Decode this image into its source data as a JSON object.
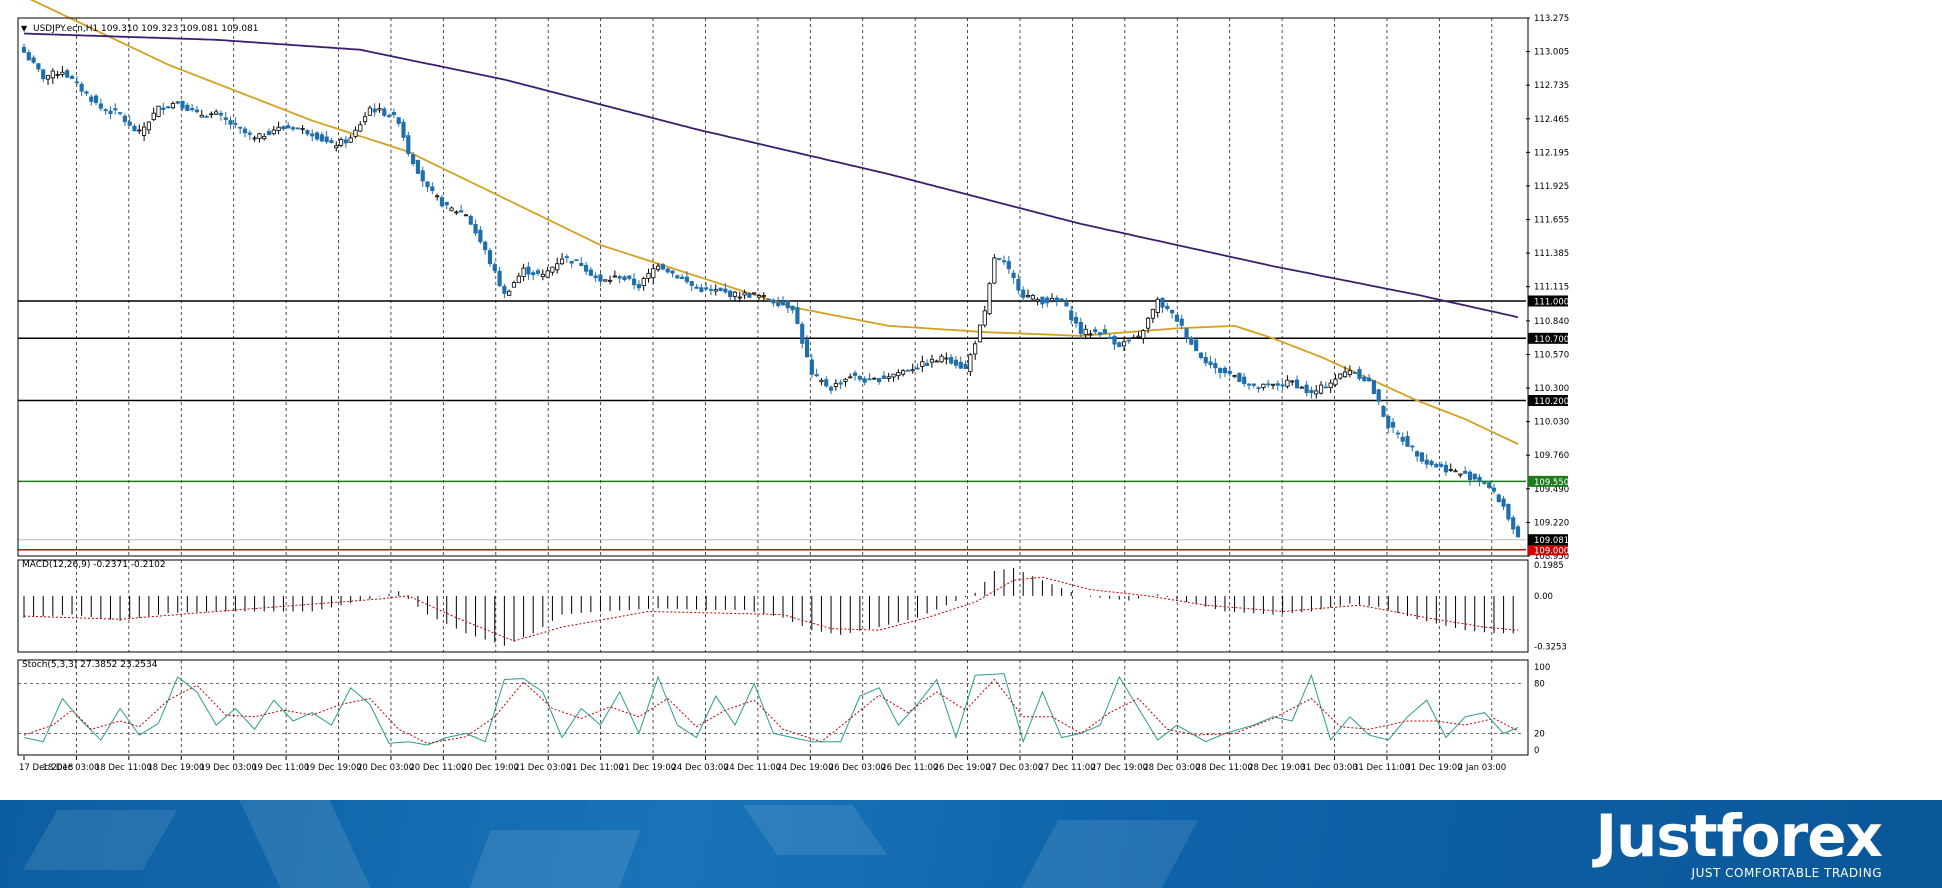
{
  "chart_data": {
    "type": "candlestick",
    "symbol_header": "USDJPY.ecn,H1  109.310 109.323 109.081 109.081",
    "price_axis": {
      "ticks": [
        "113.275",
        "113.005",
        "112.735",
        "112.465",
        "112.195",
        "111.925",
        "111.655",
        "111.385",
        "111.115",
        "110.840",
        "110.570",
        "110.300",
        "110.030",
        "109.760",
        "109.490",
        "109.220",
        "108.950"
      ],
      "range": [
        108.95,
        113.275
      ]
    },
    "horizontal_levels": [
      {
        "label": "111.000",
        "value": 111.0,
        "color": "#000000"
      },
      {
        "label": "110.700",
        "value": 110.7,
        "color": "#000000"
      },
      {
        "label": "110.200",
        "value": 110.2,
        "color": "#000000"
      },
      {
        "label": "109.550",
        "value": 109.55,
        "color": "#1e7a1e"
      },
      {
        "label": "109.000",
        "value": 109.0,
        "color": "#d00000"
      }
    ],
    "current_price": {
      "label": "109.081",
      "value": 109.081
    },
    "time_axis": [
      "17 Dec 2018",
      "18 Dec 03:00",
      "18 Dec 11:00",
      "18 Dec 19:00",
      "19 Dec 03:00",
      "19 Dec 11:00",
      "19 Dec 19:00",
      "20 Dec 03:00",
      "20 Dec 11:00",
      "20 Dec 19:00",
      "21 Dec 03:00",
      "21 Dec 11:00",
      "21 Dec 19:00",
      "24 Dec 03:00",
      "24 Dec 11:00",
      "24 Dec 19:00",
      "26 Dec 03:00",
      "26 Dec 11:00",
      "26 Dec 19:00",
      "27 Dec 03:00",
      "27 Dec 11:00",
      "27 Dec 19:00",
      "28 Dec 03:00",
      "28 Dec 11:00",
      "28 Dec 19:00",
      "31 Dec 03:00",
      "31 Dec 11:00",
      "31 Dec 19:00",
      "2 Jan 03:00"
    ],
    "close_anchors": [
      [
        0,
        113.0
      ],
      [
        4,
        112.8
      ],
      [
        8,
        112.85
      ],
      [
        12,
        112.7
      ],
      [
        16,
        112.55
      ],
      [
        20,
        112.5
      ],
      [
        22,
        112.4
      ],
      [
        24,
        112.35
      ],
      [
        28,
        112.55
      ],
      [
        32,
        112.6
      ],
      [
        36,
        112.5
      ],
      [
        40,
        112.5
      ],
      [
        44,
        112.4
      ],
      [
        48,
        112.3
      ],
      [
        52,
        112.38
      ],
      [
        56,
        112.4
      ],
      [
        60,
        112.35
      ],
      [
        64,
        112.25
      ],
      [
        68,
        112.3
      ],
      [
        72,
        112.55
      ],
      [
        76,
        112.5
      ],
      [
        78,
        112.45
      ],
      [
        80,
        112.2
      ],
      [
        84,
        111.9
      ],
      [
        88,
        111.75
      ],
      [
        92,
        111.7
      ],
      [
        96,
        111.4
      ],
      [
        100,
        111.05
      ],
      [
        104,
        111.25
      ],
      [
        108,
        111.2
      ],
      [
        112,
        111.35
      ],
      [
        116,
        111.3
      ],
      [
        120,
        111.15
      ],
      [
        124,
        111.2
      ],
      [
        128,
        111.12
      ],
      [
        132,
        111.3
      ],
      [
        136,
        111.2
      ],
      [
        140,
        111.1
      ],
      [
        144,
        111.08
      ],
      [
        148,
        111.05
      ],
      [
        152,
        111.05
      ],
      [
        156,
        111.0
      ],
      [
        160,
        110.95
      ],
      [
        164,
        110.4
      ],
      [
        168,
        110.3
      ],
      [
        172,
        110.4
      ],
      [
        176,
        110.35
      ],
      [
        180,
        110.4
      ],
      [
        184,
        110.45
      ],
      [
        188,
        110.5
      ],
      [
        192,
        110.55
      ],
      [
        196,
        110.45
      ],
      [
        200,
        110.9
      ],
      [
        202,
        111.35
      ],
      [
        204,
        111.3
      ],
      [
        208,
        111.05
      ],
      [
        212,
        111.0
      ],
      [
        216,
        111.0
      ],
      [
        220,
        110.75
      ],
      [
        224,
        110.75
      ],
      [
        228,
        110.65
      ],
      [
        232,
        110.7
      ],
      [
        236,
        111.0
      ],
      [
        240,
        110.85
      ],
      [
        244,
        110.6
      ],
      [
        248,
        110.45
      ],
      [
        252,
        110.4
      ],
      [
        256,
        110.3
      ],
      [
        260,
        110.32
      ],
      [
        264,
        110.35
      ],
      [
        268,
        110.25
      ],
      [
        272,
        110.35
      ],
      [
        276,
        110.45
      ],
      [
        280,
        110.35
      ],
      [
        284,
        110.0
      ],
      [
        288,
        109.85
      ],
      [
        292,
        109.7
      ],
      [
        296,
        109.65
      ],
      [
        300,
        109.6
      ],
      [
        304,
        109.55
      ],
      [
        308,
        109.35
      ],
      [
        311,
        109.08
      ]
    ],
    "n_bars": 312,
    "moving_averages": [
      {
        "color": "#d4a020",
        "anchors": [
          [
            0,
            113.45
          ],
          [
            30,
            112.9
          ],
          [
            60,
            112.45
          ],
          [
            80,
            112.2
          ],
          [
            120,
            111.45
          ],
          [
            160,
            110.95
          ],
          [
            180,
            110.8
          ],
          [
            200,
            110.75
          ],
          [
            220,
            110.72
          ],
          [
            240,
            110.78
          ],
          [
            252,
            110.8
          ],
          [
            260,
            110.7
          ],
          [
            270,
            110.55
          ],
          [
            290,
            110.2
          ],
          [
            300,
            110.05
          ],
          [
            311,
            109.85
          ]
        ]
      },
      {
        "color": "#3c1e6e",
        "anchors": [
          [
            0,
            113.15
          ],
          [
            40,
            113.1
          ],
          [
            70,
            113.02
          ],
          [
            100,
            112.78
          ],
          [
            140,
            112.38
          ],
          [
            180,
            112.02
          ],
          [
            220,
            111.62
          ],
          [
            260,
            111.28
          ],
          [
            290,
            111.05
          ],
          [
            311,
            110.87
          ]
        ]
      }
    ],
    "macd": {
      "label": "MACD(12,26,9) -0.2371 -0.2102",
      "ticks": [
        "0.1985",
        "0.00",
        "-0.3253"
      ],
      "range": [
        -0.36,
        0.23
      ],
      "hist_anchors": [
        [
          0,
          -0.14
        ],
        [
          10,
          -0.12
        ],
        [
          20,
          -0.16
        ],
        [
          30,
          -0.11
        ],
        [
          40,
          -0.1
        ],
        [
          60,
          -0.1
        ],
        [
          72,
          -0.02
        ],
        [
          78,
          0.03
        ],
        [
          84,
          -0.12
        ],
        [
          92,
          -0.24
        ],
        [
          100,
          -0.32
        ],
        [
          106,
          -0.24
        ],
        [
          112,
          -0.12
        ],
        [
          120,
          -0.1
        ],
        [
          132,
          -0.08
        ],
        [
          142,
          -0.09
        ],
        [
          150,
          -0.09
        ],
        [
          158,
          -0.14
        ],
        [
          164,
          -0.22
        ],
        [
          170,
          -0.25
        ],
        [
          178,
          -0.2
        ],
        [
          186,
          -0.14
        ],
        [
          192,
          -0.06
        ],
        [
          198,
          0.02
        ],
        [
          202,
          0.16
        ],
        [
          206,
          0.18
        ],
        [
          212,
          0.1
        ],
        [
          220,
          0.0
        ],
        [
          230,
          -0.03
        ],
        [
          236,
          0.01
        ],
        [
          242,
          -0.04
        ],
        [
          250,
          -0.1
        ],
        [
          260,
          -0.12
        ],
        [
          268,
          -0.1
        ],
        [
          276,
          -0.05
        ],
        [
          282,
          -0.07
        ],
        [
          290,
          -0.15
        ],
        [
          300,
          -0.22
        ],
        [
          306,
          -0.24
        ],
        [
          311,
          -0.24
        ]
      ],
      "signal_anchors": [
        [
          0,
          -0.13
        ],
        [
          20,
          -0.15
        ],
        [
          40,
          -0.1
        ],
        [
          74,
          -0.02
        ],
        [
          80,
          0.0
        ],
        [
          90,
          -0.14
        ],
        [
          102,
          -0.29
        ],
        [
          112,
          -0.2
        ],
        [
          130,
          -0.1
        ],
        [
          158,
          -0.12
        ],
        [
          168,
          -0.21
        ],
        [
          178,
          -0.22
        ],
        [
          188,
          -0.14
        ],
        [
          198,
          -0.04
        ],
        [
          206,
          0.1
        ],
        [
          212,
          0.12
        ],
        [
          222,
          0.04
        ],
        [
          234,
          0.0
        ],
        [
          246,
          -0.06
        ],
        [
          262,
          -0.1
        ],
        [
          278,
          -0.06
        ],
        [
          292,
          -0.14
        ],
        [
          304,
          -0.2
        ],
        [
          311,
          -0.22
        ]
      ]
    },
    "stochastic": {
      "label": "Stoch(5,3,3) 27.3852 23.2534",
      "ticks": [
        "100",
        "80",
        "20",
        "0"
      ],
      "range": [
        0,
        100
      ],
      "k_anchors": [
        [
          0,
          15
        ],
        [
          4,
          10
        ],
        [
          8,
          62
        ],
        [
          12,
          35
        ],
        [
          16,
          12
        ],
        [
          20,
          50
        ],
        [
          24,
          18
        ],
        [
          28,
          32
        ],
        [
          32,
          88
        ],
        [
          36,
          70
        ],
        [
          40,
          30
        ],
        [
          44,
          50
        ],
        [
          48,
          25
        ],
        [
          52,
          60
        ],
        [
          56,
          35
        ],
        [
          60,
          45
        ],
        [
          64,
          30
        ],
        [
          68,
          75
        ],
        [
          72,
          55
        ],
        [
          76,
          8
        ],
        [
          80,
          10
        ],
        [
          84,
          6
        ],
        [
          88,
          15
        ],
        [
          92,
          20
        ],
        [
          96,
          10
        ],
        [
          100,
          85
        ],
        [
          104,
          86
        ],
        [
          108,
          70
        ],
        [
          112,
          15
        ],
        [
          116,
          50
        ],
        [
          120,
          30
        ],
        [
          124,
          70
        ],
        [
          128,
          20
        ],
        [
          132,
          88
        ],
        [
          136,
          30
        ],
        [
          140,
          15
        ],
        [
          144,
          65
        ],
        [
          148,
          30
        ],
        [
          152,
          80
        ],
        [
          156,
          20
        ],
        [
          160,
          15
        ],
        [
          164,
          10
        ],
        [
          170,
          10
        ],
        [
          174,
          65
        ],
        [
          178,
          75
        ],
        [
          182,
          30
        ],
        [
          186,
          55
        ],
        [
          190,
          85
        ],
        [
          194,
          15
        ],
        [
          198,
          90
        ],
        [
          204,
          92
        ],
        [
          208,
          10
        ],
        [
          212,
          70
        ],
        [
          216,
          15
        ],
        [
          220,
          20
        ],
        [
          224,
          30
        ],
        [
          228,
          88
        ],
        [
          232,
          50
        ],
        [
          236,
          12
        ],
        [
          240,
          30
        ],
        [
          246,
          10
        ],
        [
          250,
          20
        ],
        [
          256,
          30
        ],
        [
          260,
          40
        ],
        [
          264,
          35
        ],
        [
          268,
          90
        ],
        [
          272,
          12
        ],
        [
          276,
          40
        ],
        [
          280,
          18
        ],
        [
          284,
          12
        ],
        [
          288,
          40
        ],
        [
          292,
          60
        ],
        [
          296,
          15
        ],
        [
          300,
          40
        ],
        [
          304,
          45
        ],
        [
          308,
          20
        ],
        [
          311,
          27
        ]
      ],
      "d_anchors": [
        [
          0,
          18
        ],
        [
          6,
          30
        ],
        [
          10,
          48
        ],
        [
          14,
          25
        ],
        [
          20,
          35
        ],
        [
          24,
          28
        ],
        [
          30,
          60
        ],
        [
          36,
          78
        ],
        [
          42,
          42
        ],
        [
          48,
          40
        ],
        [
          54,
          48
        ],
        [
          60,
          42
        ],
        [
          66,
          55
        ],
        [
          72,
          62
        ],
        [
          78,
          25
        ],
        [
          84,
          8
        ],
        [
          92,
          16
        ],
        [
          98,
          40
        ],
        [
          104,
          82
        ],
        [
          110,
          50
        ],
        [
          116,
          38
        ],
        [
          122,
          52
        ],
        [
          128,
          40
        ],
        [
          134,
          62
        ],
        [
          140,
          28
        ],
        [
          146,
          48
        ],
        [
          152,
          60
        ],
        [
          158,
          25
        ],
        [
          166,
          10
        ],
        [
          172,
          38
        ],
        [
          178,
          66
        ],
        [
          184,
          45
        ],
        [
          190,
          70
        ],
        [
          196,
          48
        ],
        [
          202,
          85
        ],
        [
          208,
          40
        ],
        [
          214,
          40
        ],
        [
          220,
          20
        ],
        [
          226,
          45
        ],
        [
          232,
          62
        ],
        [
          238,
          25
        ],
        [
          244,
          18
        ],
        [
          252,
          20
        ],
        [
          260,
          38
        ],
        [
          268,
          62
        ],
        [
          274,
          28
        ],
        [
          280,
          25
        ],
        [
          288,
          35
        ],
        [
          294,
          35
        ],
        [
          300,
          30
        ],
        [
          306,
          38
        ],
        [
          311,
          23
        ]
      ]
    }
  },
  "footer": {
    "brand": "Justforex",
    "tagline": "JUST COMFORTABLE TRADING"
  }
}
